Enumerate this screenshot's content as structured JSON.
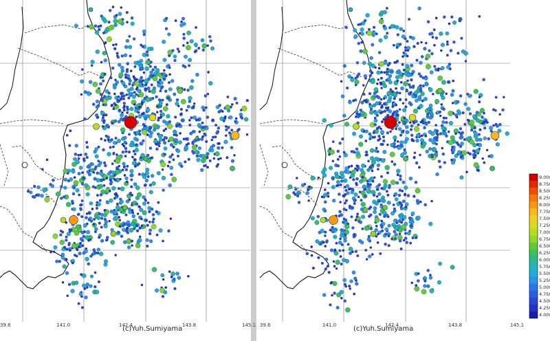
{
  "maps": [
    {
      "name": "left",
      "credit": "(c)Yuh.Sumiyama",
      "x_ticks": [
        "39.6",
        "141.0",
        "142.4",
        "143.8",
        "145.1"
      ]
    },
    {
      "name": "right",
      "credit": "(c)Yuh.Sumiyama",
      "x_ticks": [
        "39.6",
        "141.0",
        "142.4",
        "143.8",
        "145.1"
      ]
    }
  ],
  "legend": {
    "labels": [
      "9.000",
      "8.750",
      "8.500",
      "8.250",
      "8.000",
      "7.750",
      "7.500",
      "7.250",
      "7.000",
      "6.750",
      "6.500",
      "6.250",
      "6.000",
      "5.750",
      "5.500",
      "5.250",
      "5.000",
      "4.750",
      "4.500",
      "4.250",
      "4.000"
    ],
    "colors": [
      "#d40000",
      "#e22a00",
      "#ee5000",
      "#f57800",
      "#f89a10",
      "#f6b81a",
      "#f0d020",
      "#d6dc20",
      "#b4de22",
      "#8ed82a",
      "#62cc38",
      "#3cc05e",
      "#2ab892",
      "#22b4be",
      "#26a8dc",
      "#2a92ea",
      "#2a78e8",
      "#2a5ee0",
      "#2846d4",
      "#2432c4",
      "#1a1cb0"
    ]
  },
  "colors": {
    "coast": "#111111",
    "prefecture_border": "#333333",
    "grid": "#777777"
  }
}
